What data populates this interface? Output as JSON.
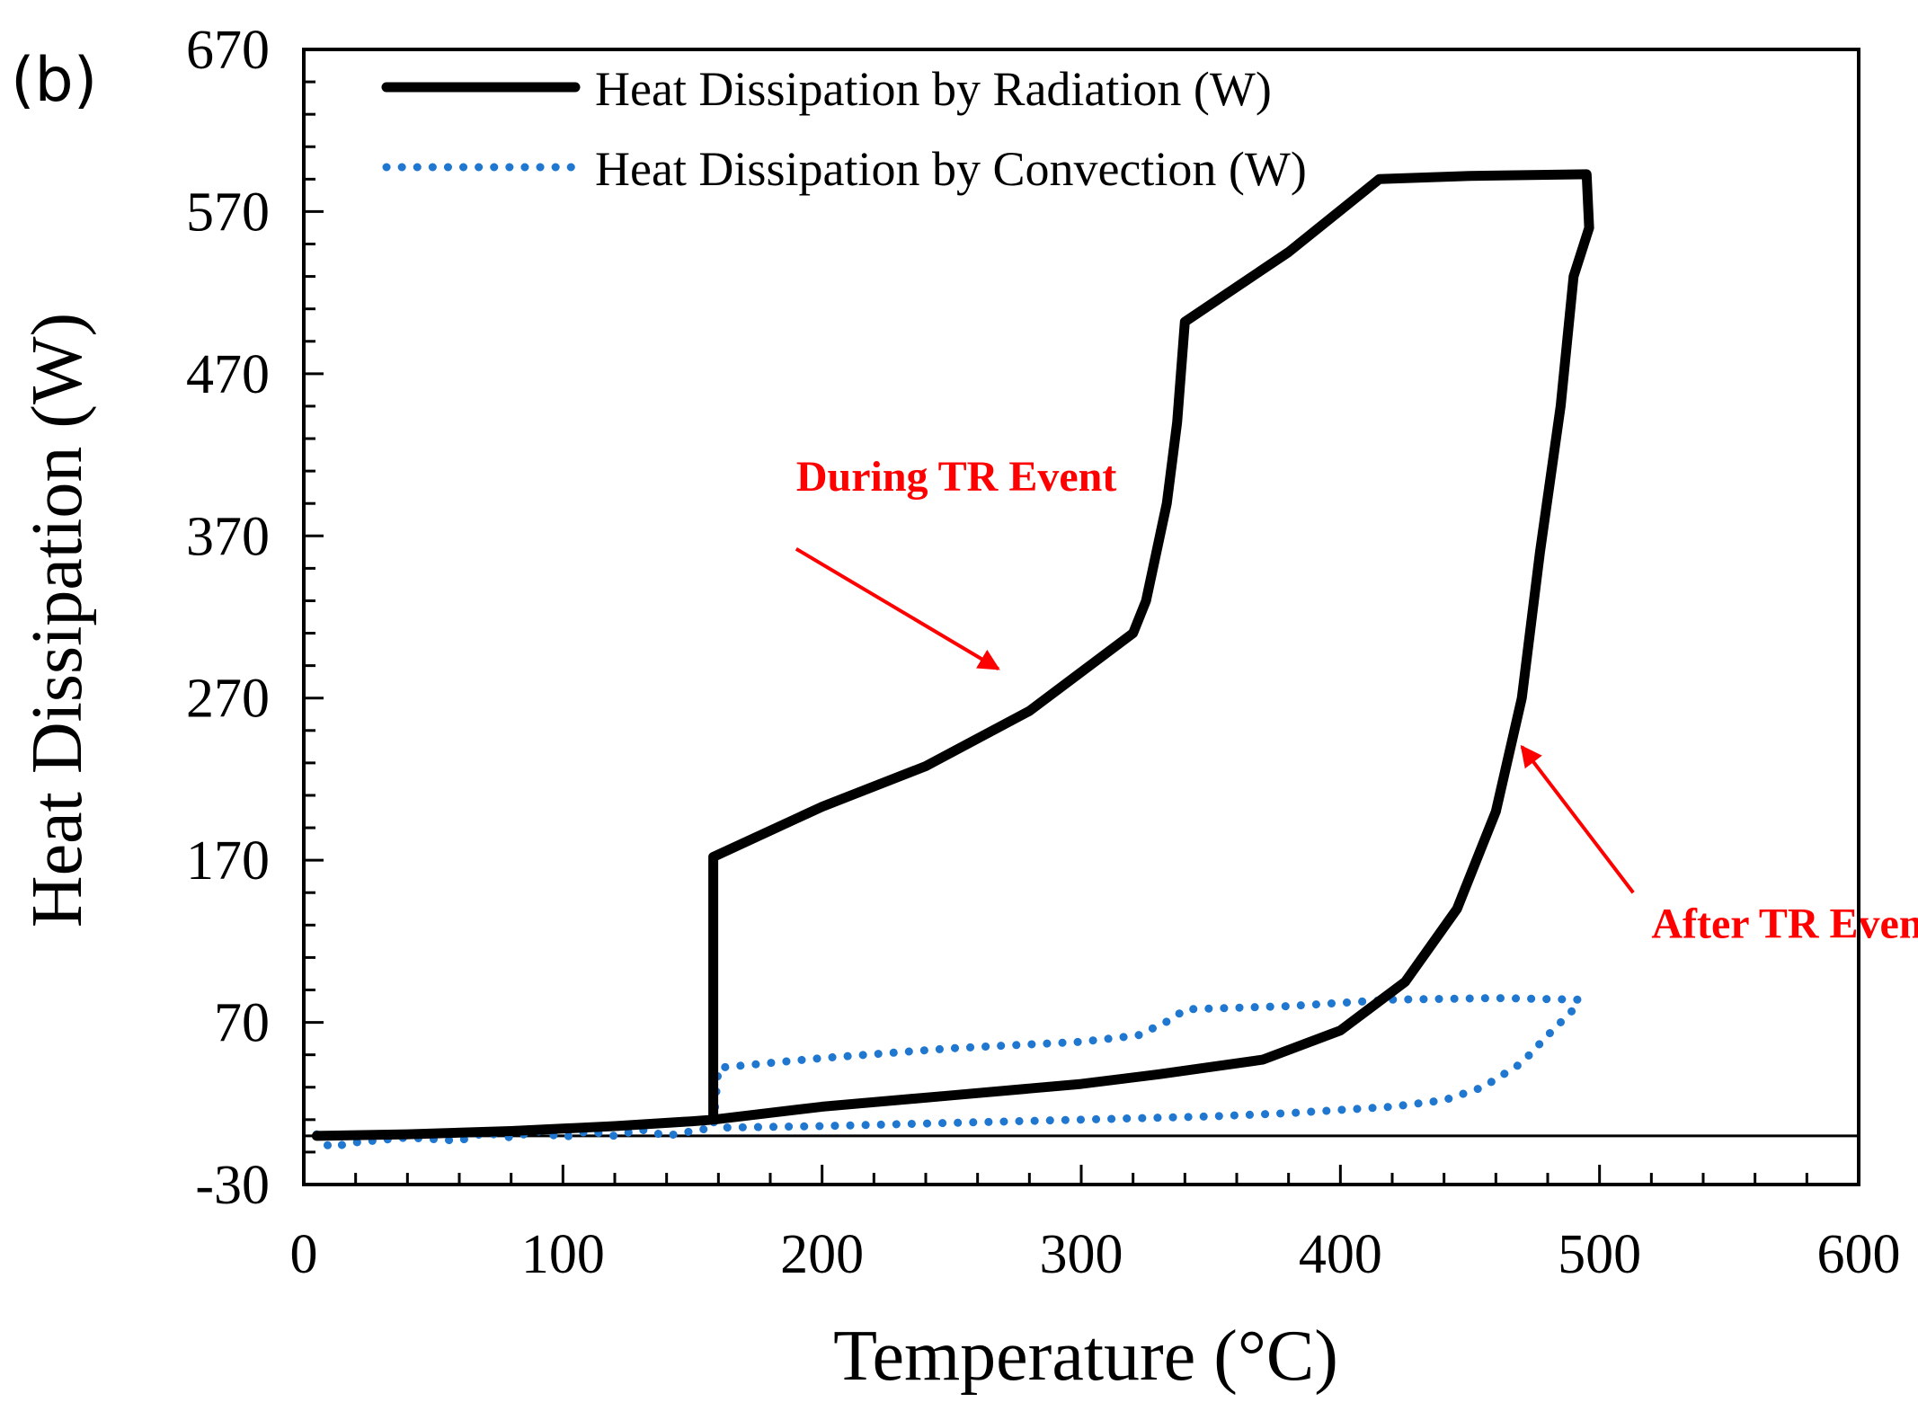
{
  "panel_label": "(b)",
  "colors": {
    "radiation": "#000000",
    "convection": "#1f77d0",
    "annotation": "#ff0000",
    "axes": "#000000",
    "background": "#ffffff"
  },
  "chart_data": {
    "type": "line",
    "xlabel": "Temperature (°C)",
    "ylabel": "Heat Dissipation (W)",
    "xlim": [
      0,
      600
    ],
    "ylim": [
      -30,
      670
    ],
    "x_ticks": [
      0,
      100,
      200,
      300,
      400,
      500,
      600
    ],
    "y_ticks": [
      -30,
      70,
      170,
      270,
      370,
      470,
      570,
      670
    ],
    "x_tick_labels": [
      "0",
      "100",
      "200",
      "300",
      "400",
      "500",
      "600"
    ],
    "y_tick_labels": [
      "-30",
      "70",
      "170",
      "270",
      "370",
      "470",
      "570",
      "670"
    ],
    "x_minor_step": 20,
    "y_minor_step": 20,
    "zero_line": 0,
    "grid": false,
    "legend_position": "top-left",
    "series": [
      {
        "name": "Heat Dissipation by Radiation (W)",
        "style": "solid",
        "points": [
          [
            5,
            0
          ],
          [
            40,
            1
          ],
          [
            80,
            3
          ],
          [
            120,
            6
          ],
          [
            150,
            9
          ],
          [
            158,
            10
          ],
          [
            158,
            172
          ],
          [
            200,
            203
          ],
          [
            240,
            228
          ],
          [
            280,
            262
          ],
          [
            320,
            310
          ],
          [
            325,
            330
          ],
          [
            333,
            390
          ],
          [
            337,
            440
          ],
          [
            340,
            502
          ],
          [
            380,
            545
          ],
          [
            415,
            590
          ],
          [
            450,
            592
          ],
          [
            495,
            593
          ],
          [
            496,
            560
          ],
          [
            490,
            530
          ],
          [
            485,
            450
          ],
          [
            477,
            360
          ],
          [
            470,
            270
          ],
          [
            460,
            200
          ],
          [
            445,
            140
          ],
          [
            425,
            95
          ],
          [
            400,
            65
          ],
          [
            370,
            47
          ],
          [
            330,
            38
          ],
          [
            300,
            32
          ],
          [
            250,
            25
          ],
          [
            200,
            18
          ],
          [
            158,
            10
          ]
        ]
      },
      {
        "name": "Heat Dissipation by Convection (W)",
        "style": "dotted",
        "points": [
          [
            5,
            1
          ],
          [
            10,
            -7
          ],
          [
            20,
            -4
          ],
          [
            40,
            -1
          ],
          [
            60,
            -3
          ],
          [
            70,
            2
          ],
          [
            80,
            -1
          ],
          [
            90,
            3
          ],
          [
            100,
            -1
          ],
          [
            110,
            3
          ],
          [
            120,
            0
          ],
          [
            130,
            4
          ],
          [
            140,
            0
          ],
          [
            150,
            3
          ],
          [
            158,
            5
          ],
          [
            160,
            42
          ],
          [
            200,
            48
          ],
          [
            250,
            54
          ],
          [
            300,
            58
          ],
          [
            322,
            62
          ],
          [
            335,
            72
          ],
          [
            340,
            78
          ],
          [
            380,
            80
          ],
          [
            420,
            84
          ],
          [
            460,
            85
          ],
          [
            492,
            84
          ],
          [
            490,
            78
          ],
          [
            480,
            62
          ],
          [
            470,
            45
          ],
          [
            455,
            30
          ],
          [
            440,
            22
          ],
          [
            420,
            18
          ],
          [
            400,
            16
          ],
          [
            380,
            14
          ],
          [
            350,
            12
          ],
          [
            300,
            10
          ],
          [
            250,
            8
          ],
          [
            200,
            6
          ],
          [
            158,
            5
          ]
        ]
      }
    ],
    "annotations": [
      {
        "text": "During TR Event",
        "color": "#ff0000",
        "text_at": [
          190,
          398
        ],
        "arrow_from": [
          190,
          362
        ],
        "arrow_to": [
          268,
          288
        ]
      },
      {
        "text": "After TR Event",
        "color": "#ff0000",
        "text_at": [
          520,
          122
        ],
        "arrow_from": [
          513,
          150
        ],
        "arrow_to": [
          470,
          240
        ]
      }
    ]
  }
}
